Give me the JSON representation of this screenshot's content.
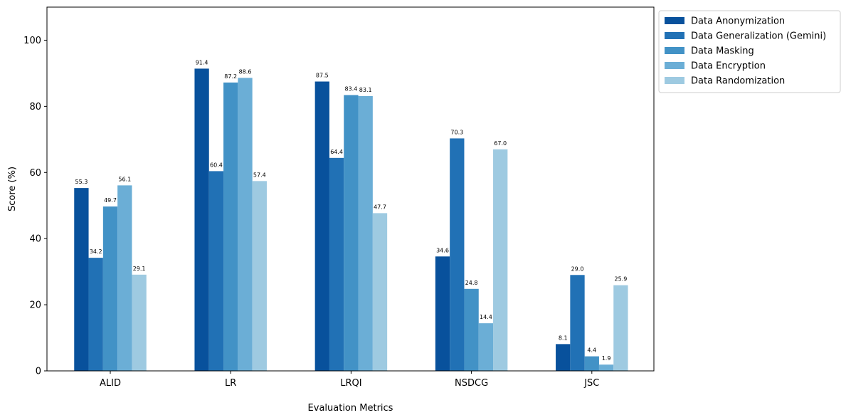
{
  "chart_data": {
    "type": "bar",
    "xlabel": "Evaluation Metrics",
    "ylabel": "Score (%)",
    "ylim": [
      0,
      110
    ],
    "yticks": [
      0,
      20,
      40,
      60,
      80,
      100
    ],
    "grid": false,
    "legend_position": "outside-top-right",
    "categories": [
      "ALID",
      "LR",
      "LRQI",
      "NSDCG",
      "JSC"
    ],
    "series": [
      {
        "name": "Data Anonymization",
        "color": "#08519c",
        "values": [
          55.3,
          91.4,
          87.5,
          34.6,
          8.1
        ],
        "labels": [
          "55.3",
          "91.4",
          "87.5",
          "34.6",
          "8.1"
        ]
      },
      {
        "name": "Data Generalization (Gemini)",
        "color": "#2171b5",
        "values": [
          34.2,
          60.4,
          64.4,
          70.3,
          29.0
        ],
        "labels": [
          "34.2",
          "60.4",
          "64.4",
          "70.3",
          "29.0"
        ]
      },
      {
        "name": "Data Masking",
        "color": "#4292c6",
        "values": [
          49.7,
          87.2,
          83.4,
          24.8,
          4.4
        ],
        "labels": [
          "49.7",
          "87.2",
          "83.4",
          "24.8",
          "4.4"
        ]
      },
      {
        "name": "Data Encryption",
        "color": "#6baed6",
        "values": [
          56.1,
          88.6,
          83.1,
          14.4,
          1.9
        ],
        "labels": [
          "56.1",
          "88.6",
          "83.1",
          "14.4",
          "1.9"
        ]
      },
      {
        "name": "Data Randomization",
        "color": "#9ecae1",
        "values": [
          29.1,
          57.4,
          47.7,
          67.0,
          25.9
        ],
        "labels": [
          "29.1",
          "57.4",
          "47.7",
          "67.0",
          "25.9"
        ]
      }
    ]
  }
}
